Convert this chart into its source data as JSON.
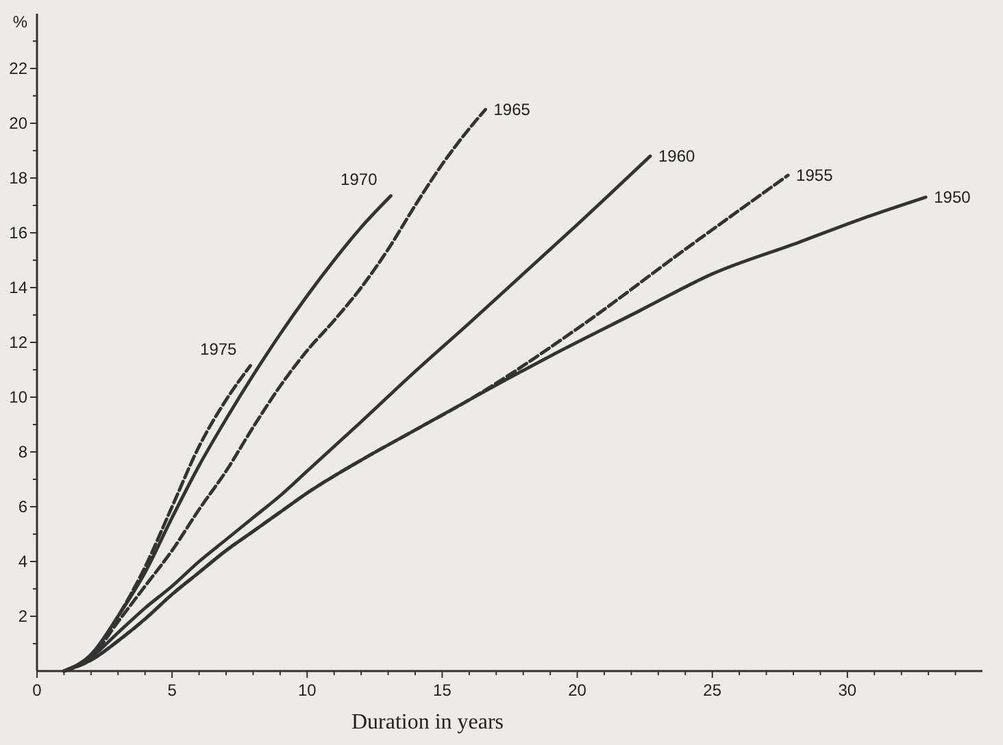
{
  "chart_data": {
    "type": "line",
    "xlabel": "Duration in years",
    "ylabel": "%",
    "xlim": [
      0,
      35
    ],
    "ylim": [
      0,
      24
    ],
    "xticks": [
      0,
      {
        "value": 1,
        "label": null
      },
      {
        "value": 2,
        "label": null
      },
      {
        "value": 3,
        "label": null
      },
      {
        "value": 4,
        "label": null
      },
      5,
      {
        "value": 6,
        "label": null
      },
      {
        "value": 7,
        "label": null
      },
      {
        "value": 8,
        "label": null
      },
      {
        "value": 9,
        "label": null
      },
      10,
      {
        "value": 11,
        "label": null
      },
      {
        "value": 12,
        "label": null
      },
      {
        "value": 13,
        "label": null
      },
      {
        "value": 14,
        "label": null
      },
      15,
      {
        "value": 16,
        "label": null
      },
      {
        "value": 17,
        "label": null
      },
      {
        "value": 18,
        "label": null
      },
      {
        "value": 19,
        "label": null
      },
      20,
      {
        "value": 21,
        "label": null
      },
      {
        "value": 22,
        "label": null
      },
      {
        "value": 23,
        "label": null
      },
      {
        "value": 24,
        "label": null
      },
      25,
      {
        "value": 26,
        "label": null
      },
      {
        "value": 27,
        "label": null
      },
      {
        "value": 28,
        "label": null
      },
      {
        "value": 29,
        "label": null
      },
      30,
      {
        "value": 31,
        "label": null
      },
      {
        "value": 32,
        "label": null
      },
      {
        "value": 33,
        "label": null
      },
      {
        "value": 34,
        "label": null
      }
    ],
    "yticks": [
      {
        "value": 1,
        "label": null
      },
      2,
      {
        "value": 3,
        "label": null
      },
      4,
      {
        "value": 5,
        "label": null
      },
      6,
      {
        "value": 7,
        "label": null
      },
      8,
      {
        "value": 9,
        "label": null
      },
      10,
      {
        "value": 11,
        "label": null
      },
      12,
      {
        "value": 13,
        "label": null
      },
      14,
      {
        "value": 15,
        "label": null
      },
      16,
      {
        "value": 17,
        "label": null
      },
      18,
      {
        "value": 19,
        "label": null
      },
      20,
      {
        "value": 21,
        "label": null
      },
      22,
      {
        "value": 23,
        "label": null
      }
    ],
    "grid": false,
    "marker": "none",
    "series": [
      {
        "name": "1950",
        "color": "#333333",
        "line_style": "solid",
        "x": [
          1,
          2,
          3,
          4,
          5,
          6,
          7,
          8,
          9,
          10,
          12,
          14,
          16,
          19,
          22.3,
          25,
          28.2,
          30.5,
          32.9
        ],
        "values": [
          0,
          0.4,
          1.1,
          1.9,
          2.8,
          3.6,
          4.4,
          5.1,
          5.8,
          6.5,
          7.7,
          8.8,
          9.9,
          11.5,
          13.15,
          14.5,
          15.65,
          16.5,
          17.3
        ]
      },
      {
        "name": "1955",
        "color": "#333333",
        "line_style": "dashed",
        "x": [
          1,
          2,
          3,
          4,
          5,
          6,
          7,
          8,
          9,
          10,
          12,
          14,
          16,
          20,
          24,
          27.8
        ],
        "values": [
          0,
          0.4,
          1.1,
          1.9,
          2.8,
          3.6,
          4.4,
          5.1,
          5.8,
          6.5,
          7.7,
          8.8,
          9.9,
          12.5,
          15.4,
          18.1
        ]
      },
      {
        "name": "1960",
        "color": "#333333",
        "line_style": "solid",
        "x": [
          1,
          2,
          3,
          4,
          5,
          6,
          7,
          8,
          9,
          10,
          11,
          12,
          13.9,
          16,
          18,
          20,
          22.7
        ],
        "values": [
          0,
          0.5,
          1.4,
          2.3,
          3.1,
          4,
          4.8,
          5.6,
          6.4,
          7.3,
          8.2,
          9.1,
          10.85,
          12.7,
          14.5,
          16.3,
          18.8
        ]
      },
      {
        "name": "1965",
        "color": "#333333",
        "line_style": "dashed",
        "x": [
          1,
          2,
          3,
          4,
          5,
          6,
          7,
          8,
          9,
          10,
          11,
          12,
          13,
          14,
          15,
          16,
          16.6
        ],
        "values": [
          0,
          0.5,
          1.8,
          3.1,
          4.4,
          5.9,
          7.3,
          8.9,
          10.4,
          11.7,
          12.8,
          14,
          15.4,
          17,
          18.5,
          19.8,
          20.5
        ]
      },
      {
        "name": "1970",
        "color": "#333333",
        "line_style": "solid",
        "x": [
          1,
          2,
          3,
          4,
          5,
          6,
          7,
          8,
          9,
          10,
          11,
          12,
          13.1
        ],
        "values": [
          0,
          0.6,
          2,
          3.6,
          5.6,
          7.5,
          9.2,
          10.8,
          12.3,
          13.7,
          15,
          16.2,
          17.35
        ]
      },
      {
        "name": "1975",
        "color": "#333333",
        "line_style": "dashed",
        "x": [
          1,
          2,
          3,
          4,
          5,
          6,
          7,
          7.9
        ],
        "values": [
          0,
          0.6,
          2,
          3.8,
          6,
          8.2,
          9.9,
          11.15
        ]
      }
    ]
  }
}
